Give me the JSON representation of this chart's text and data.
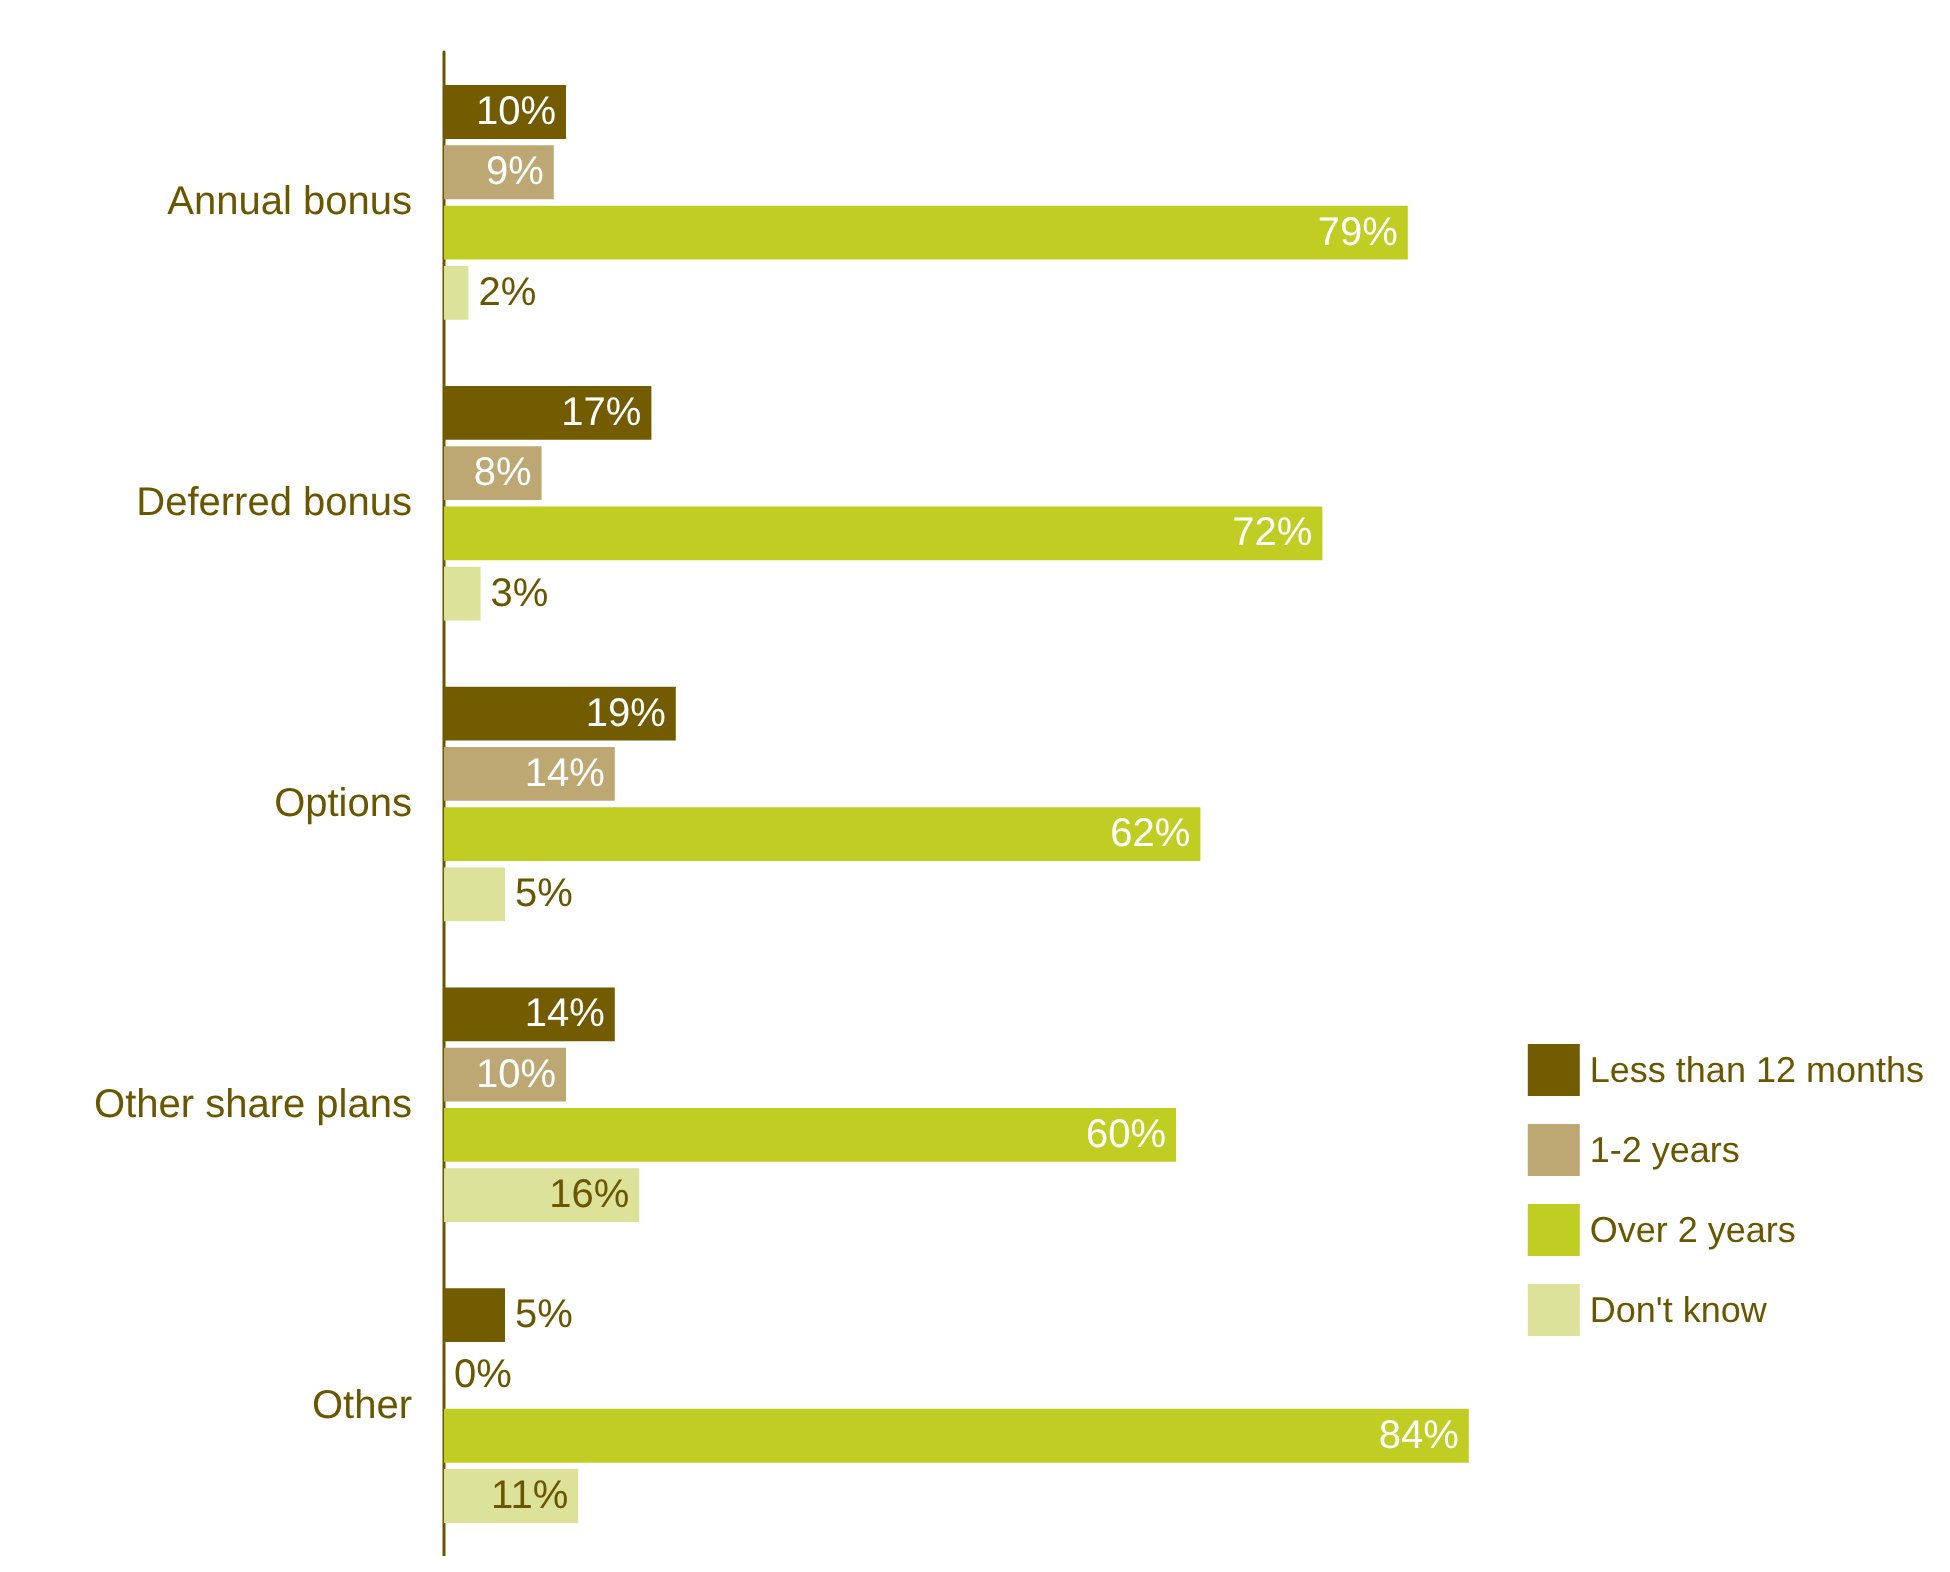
{
  "chart_data": {
    "type": "bar",
    "orientation": "horizontal",
    "categories": [
      "Annual bonus",
      "Deferred bonus",
      "Options",
      "Other share plans",
      "Other"
    ],
    "series": [
      {
        "name": "Less than 12 months",
        "color": "#735b00",
        "values": [
          10,
          17,
          19,
          14,
          5
        ],
        "value_labels": [
          "10%",
          "17%",
          "19%",
          "14%",
          "5%"
        ]
      },
      {
        "name": "1-2 years",
        "color": "#bda874",
        "values": [
          9,
          8,
          14,
          10,
          0
        ],
        "value_labels": [
          "9%",
          "8%",
          "14%",
          "10%",
          "0%"
        ]
      },
      {
        "name": "Over 2 years",
        "color": "#c0cd22",
        "values": [
          79,
          72,
          62,
          60,
          84
        ],
        "value_labels": [
          "79%",
          "72%",
          "62%",
          "60%",
          "84%"
        ]
      },
      {
        "name": "Don't know",
        "color": "#dde29a",
        "values": [
          2,
          3,
          5,
          16,
          11
        ],
        "value_labels": [
          "2%",
          "3%",
          "5%",
          "16%",
          "11%"
        ]
      }
    ],
    "legend": "bottom right"
  }
}
